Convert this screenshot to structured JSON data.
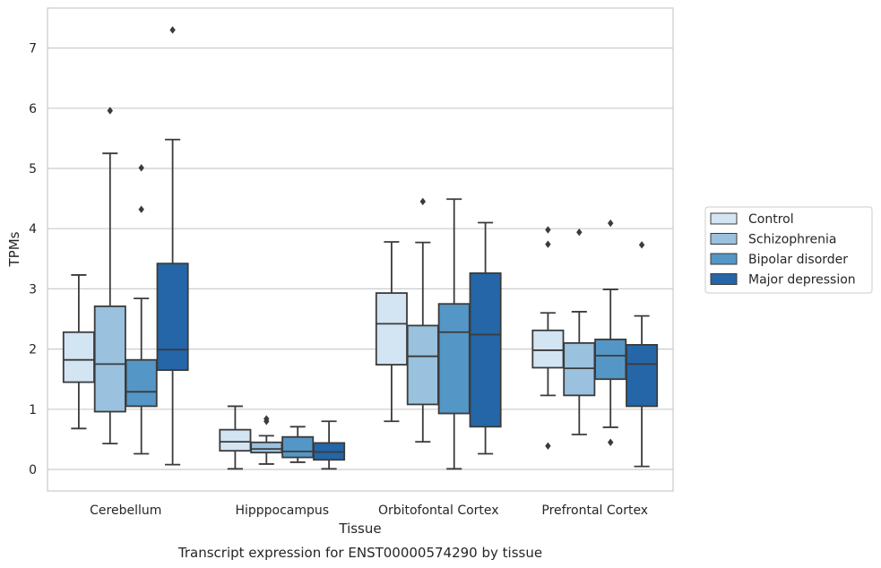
{
  "chart_data": {
    "type": "box",
    "caption": "Transcript expression for ENST00000574290 by tissue",
    "xlabel": "Tissue",
    "ylabel": "TPMs",
    "ylim": [
      -0.35,
      7.7
    ],
    "yticks": [
      0,
      1,
      2,
      3,
      4,
      5,
      6,
      7
    ],
    "grid": "horizontal",
    "legend_position": "right",
    "categories": [
      "Cerebellum",
      "Hipppocampus",
      "Orbitofontal Cortex",
      "Prefrontal Cortex"
    ],
    "series": [
      {
        "name": "Control",
        "color": "#d3e4f3",
        "boxes": [
          {
            "whislo": 0.68,
            "q1": 1.45,
            "med": 1.82,
            "q3": 2.28,
            "whishi": 3.23,
            "fliers": []
          },
          {
            "whislo": 0.01,
            "q1": 0.31,
            "med": 0.46,
            "q3": 0.66,
            "whishi": 1.05,
            "fliers": []
          },
          {
            "whislo": 0.8,
            "q1": 1.74,
            "med": 2.42,
            "q3": 2.93,
            "whishi": 3.78,
            "fliers": []
          },
          {
            "whislo": 1.23,
            "q1": 1.69,
            "med": 1.98,
            "q3": 2.31,
            "whishi": 2.6,
            "fliers": [
              0.39,
              3.74,
              3.98
            ]
          }
        ]
      },
      {
        "name": "Schizophrenia",
        "color": "#9ac1de",
        "boxes": [
          {
            "whislo": 0.43,
            "q1": 0.96,
            "med": 1.75,
            "q3": 2.71,
            "whishi": 5.25,
            "fliers": [
              5.96
            ]
          },
          {
            "whislo": 0.09,
            "q1": 0.28,
            "med": 0.34,
            "q3": 0.45,
            "whishi": 0.56,
            "fliers": [
              0.8,
              0.84
            ]
          },
          {
            "whislo": 0.46,
            "q1": 1.08,
            "med": 1.88,
            "q3": 2.39,
            "whishi": 3.77,
            "fliers": [
              4.45
            ]
          },
          {
            "whislo": 0.58,
            "q1": 1.23,
            "med": 1.68,
            "q3": 2.1,
            "whishi": 2.62,
            "fliers": [
              3.94
            ]
          }
        ]
      },
      {
        "name": "Bipolar disorder",
        "color": "#5496c6",
        "boxes": [
          {
            "whislo": 0.26,
            "q1": 1.05,
            "med": 1.29,
            "q3": 1.82,
            "whishi": 2.84,
            "fliers": [
              4.32,
              5.01
            ]
          },
          {
            "whislo": 0.12,
            "q1": 0.2,
            "med": 0.3,
            "q3": 0.54,
            "whishi": 0.71,
            "fliers": []
          },
          {
            "whislo": 0.01,
            "q1": 0.93,
            "med": 2.28,
            "q3": 2.75,
            "whishi": 4.49,
            "fliers": []
          },
          {
            "whislo": 0.7,
            "q1": 1.5,
            "med": 1.89,
            "q3": 2.16,
            "whishi": 2.99,
            "fliers": [
              0.45,
              4.09
            ]
          }
        ]
      },
      {
        "name": "Major depression",
        "color": "#2466a7",
        "boxes": [
          {
            "whislo": 0.08,
            "q1": 1.65,
            "med": 1.99,
            "q3": 3.42,
            "whishi": 5.48,
            "fliers": [
              7.3
            ]
          },
          {
            "whislo": 0.01,
            "q1": 0.16,
            "med": 0.29,
            "q3": 0.44,
            "whishi": 0.8,
            "fliers": []
          },
          {
            "whislo": 0.26,
            "q1": 0.71,
            "med": 2.24,
            "q3": 3.26,
            "whishi": 4.1,
            "fliers": []
          },
          {
            "whislo": 0.05,
            "q1": 1.05,
            "med": 1.75,
            "q3": 2.07,
            "whishi": 2.55,
            "fliers": [
              3.73
            ]
          }
        ]
      }
    ]
  }
}
